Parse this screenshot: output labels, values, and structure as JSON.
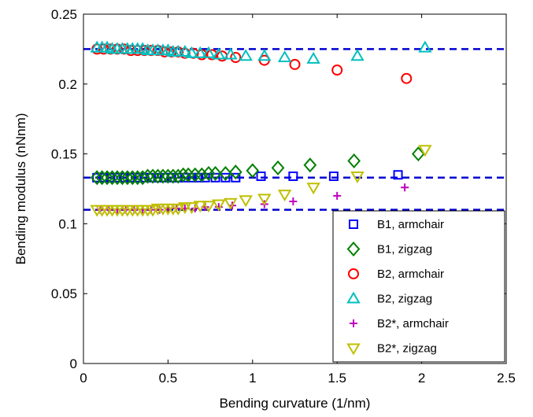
{
  "chart_data": {
    "type": "scatter",
    "title": "",
    "xlabel": "Bending curvature (1/nm)",
    "ylabel": "Bending modulus (nNnm)",
    "xlim": [
      0,
      2.5
    ],
    "ylim": [
      0,
      0.25
    ],
    "xticks": [
      "0",
      "0.5",
      "1",
      "1.5",
      "2",
      "2.5"
    ],
    "yticks": [
      "0",
      "0.05",
      "0.1",
      "0.15",
      "0.2",
      "0.25"
    ],
    "grid": false,
    "legend_position": "bottom-right",
    "reference_lines": [
      {
        "y": 0.225,
        "color": "#0000d0",
        "style": "dashed"
      },
      {
        "y": 0.133,
        "color": "#0000d0",
        "style": "dashed"
      },
      {
        "y": 0.11,
        "color": "#0000d0",
        "style": "dashed"
      }
    ],
    "series": [
      {
        "name": "B1, armchair",
        "marker": "square",
        "color": "#0000ff",
        "x": [
          0.08,
          0.12,
          0.16,
          0.2,
          0.24,
          0.28,
          0.32,
          0.36,
          0.4,
          0.44,
          0.48,
          0.52,
          0.56,
          0.6,
          0.64,
          0.68,
          0.72,
          0.78,
          0.84,
          0.9,
          1.05,
          1.24,
          1.48,
          1.86
        ],
        "y": [
          0.133,
          0.133,
          0.133,
          0.133,
          0.133,
          0.133,
          0.133,
          0.133,
          0.133,
          0.133,
          0.133,
          0.133,
          0.133,
          0.133,
          0.133,
          0.133,
          0.133,
          0.133,
          0.133,
          0.133,
          0.134,
          0.134,
          0.134,
          0.135
        ]
      },
      {
        "name": "B1, zigzag",
        "marker": "diamond",
        "color": "#007f00",
        "x": [
          0.08,
          0.11,
          0.14,
          0.17,
          0.2,
          0.23,
          0.26,
          0.29,
          0.32,
          0.35,
          0.38,
          0.41,
          0.44,
          0.47,
          0.5,
          0.53,
          0.56,
          0.59,
          0.62,
          0.66,
          0.7,
          0.74,
          0.78,
          0.84,
          0.9,
          1.0,
          1.15,
          1.34,
          1.6,
          1.98
        ],
        "y": [
          0.133,
          0.133,
          0.133,
          0.133,
          0.133,
          0.133,
          0.133,
          0.133,
          0.133,
          0.133,
          0.134,
          0.134,
          0.134,
          0.134,
          0.134,
          0.134,
          0.134,
          0.135,
          0.135,
          0.135,
          0.135,
          0.136,
          0.136,
          0.136,
          0.137,
          0.138,
          0.14,
          0.142,
          0.145,
          0.15
        ]
      },
      {
        "name": "B2, armchair",
        "marker": "circle",
        "color": "#ff0000",
        "x": [
          0.08,
          0.12,
          0.16,
          0.2,
          0.24,
          0.28,
          0.32,
          0.36,
          0.4,
          0.44,
          0.48,
          0.52,
          0.56,
          0.6,
          0.65,
          0.7,
          0.76,
          0.82,
          0.9,
          1.07,
          1.25,
          1.5,
          1.91
        ],
        "y": [
          0.225,
          0.225,
          0.225,
          0.225,
          0.225,
          0.224,
          0.224,
          0.224,
          0.224,
          0.224,
          0.223,
          0.223,
          0.223,
          0.222,
          0.222,
          0.221,
          0.221,
          0.22,
          0.219,
          0.217,
          0.214,
          0.21,
          0.204
        ]
      },
      {
        "name": "B2, zigzag",
        "marker": "triangle-up",
        "color": "#00bfbf",
        "x": [
          0.08,
          0.11,
          0.14,
          0.17,
          0.2,
          0.23,
          0.26,
          0.29,
          0.32,
          0.35,
          0.38,
          0.41,
          0.44,
          0.47,
          0.5,
          0.53,
          0.56,
          0.6,
          0.64,
          0.69,
          0.74,
          0.8,
          0.87,
          0.96,
          1.07,
          1.19,
          1.36,
          1.62,
          2.02
        ],
        "y": [
          0.226,
          0.226,
          0.226,
          0.225,
          0.225,
          0.225,
          0.225,
          0.225,
          0.225,
          0.225,
          0.224,
          0.224,
          0.224,
          0.224,
          0.224,
          0.223,
          0.223,
          0.223,
          0.222,
          0.222,
          0.222,
          0.221,
          0.221,
          0.22,
          0.22,
          0.219,
          0.218,
          0.22,
          0.226
        ]
      },
      {
        "name": "B2*, armchair",
        "marker": "plus",
        "color": "#bf00bf",
        "x": [
          0.1,
          0.15,
          0.2,
          0.25,
          0.3,
          0.35,
          0.4,
          0.45,
          0.5,
          0.55,
          0.6,
          0.66,
          0.72,
          0.8,
          0.88,
          1.07,
          1.24,
          1.5,
          1.9
        ],
        "y": [
          0.11,
          0.11,
          0.11,
          0.11,
          0.11,
          0.11,
          0.11,
          0.11,
          0.111,
          0.111,
          0.111,
          0.111,
          0.112,
          0.112,
          0.113,
          0.114,
          0.116,
          0.12,
          0.126
        ]
      },
      {
        "name": "B2*, zigzag",
        "marker": "triangle-down",
        "color": "#bfbf00",
        "x": [
          0.08,
          0.11,
          0.14,
          0.17,
          0.2,
          0.23,
          0.26,
          0.29,
          0.32,
          0.35,
          0.38,
          0.41,
          0.44,
          0.47,
          0.5,
          0.53,
          0.56,
          0.6,
          0.64,
          0.69,
          0.74,
          0.8,
          0.87,
          0.96,
          1.07,
          1.19,
          1.36,
          1.62,
          2.02
        ],
        "y": [
          0.11,
          0.11,
          0.11,
          0.11,
          0.11,
          0.11,
          0.11,
          0.11,
          0.11,
          0.11,
          0.11,
          0.11,
          0.111,
          0.111,
          0.111,
          0.111,
          0.111,
          0.112,
          0.112,
          0.113,
          0.113,
          0.114,
          0.115,
          0.117,
          0.118,
          0.121,
          0.126,
          0.134,
          0.153
        ]
      }
    ]
  }
}
